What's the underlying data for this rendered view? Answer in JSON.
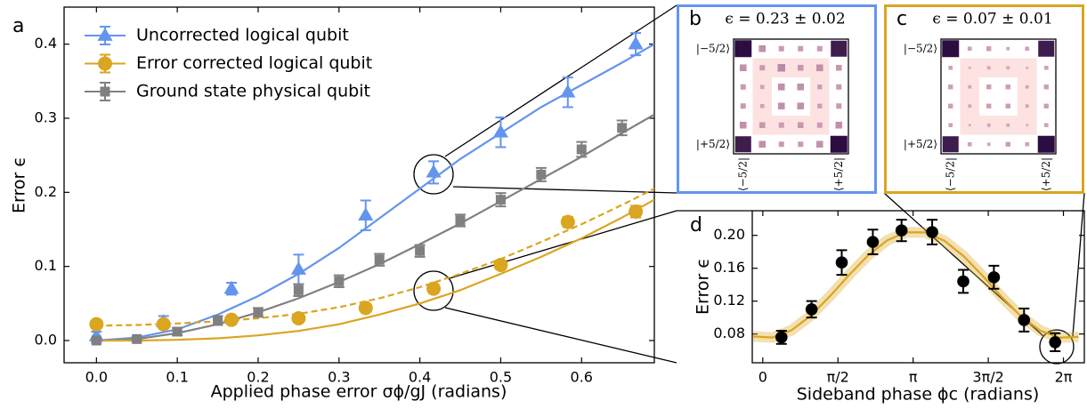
{
  "chart_data": [
    {
      "type": "errorbar",
      "panel": "a",
      "xlabel": "Applied phase error σϕ/gJ (radians)",
      "ylabel": "Error ϵ",
      "xlim": [
        -0.04,
        0.69
      ],
      "ylim": [
        -0.03,
        0.45
      ],
      "xticks": [
        {
          "value": 0,
          "label": "0.0"
        },
        0.1,
        0.2,
        0.3,
        0.4,
        0.5,
        0.6
      ],
      "yticks": [
        {
          "value": 0,
          "label": "0.0"
        },
        0.1,
        0.2,
        0.3,
        0.4
      ],
      "legend": "upper left",
      "series": [
        {
          "name": "Uncorrected logical qubit",
          "color": "#6495ed",
          "marker": "triangle",
          "x": [
            0,
            0.083,
            0.167,
            0.25,
            0.333,
            0.417,
            0.5,
            0.583,
            0.667
          ],
          "values": [
            0.006,
            0.025,
            0.07,
            0.096,
            0.169,
            0.227,
            0.281,
            0.335,
            0.4
          ],
          "errors": [
            0.006,
            0.008,
            0.008,
            0.02,
            0.02,
            0.015,
            0.02,
            0.02,
            0.015
          ]
        },
        {
          "name": "Error corrected logical qubit",
          "color": "#daa520",
          "marker": "circle",
          "x": [
            0,
            0.083,
            0.167,
            0.25,
            0.333,
            0.417,
            0.5,
            0.583,
            0.667
          ],
          "values": [
            0.022,
            0.022,
            0.028,
            0.03,
            0.044,
            0.07,
            0.102,
            0.16,
            0.174
          ],
          "errors": [
            0.004,
            0.004,
            0.004,
            0.004,
            0.005,
            0.006,
            0.006,
            0.007,
            0.008
          ]
        },
        {
          "name": "Ground state physical qubit",
          "color": "#808080",
          "marker": "square",
          "x": [
            0,
            0.05,
            0.1,
            0.15,
            0.2,
            0.25,
            0.3,
            0.35,
            0.4,
            0.45,
            0.5,
            0.55,
            0.6,
            0.65
          ],
          "values": [
            0,
            0.002,
            0.012,
            0.027,
            0.038,
            0.068,
            0.08,
            0.109,
            0.121,
            0.162,
            0.19,
            0.224,
            0.258,
            0.287
          ],
          "errors": [
            0.003,
            0.003,
            0.005,
            0.006,
            0.006,
            0.008,
            0.008,
            0.008,
            0.008,
            0.008,
            0.009,
            0.009,
            0.01,
            0.01
          ]
        }
      ],
      "fits": [
        {
          "color": "#6495ed",
          "dashed": false,
          "x": [
            0,
            0.05,
            0.1,
            0.15,
            0.2,
            0.25,
            0.3,
            0.35,
            0.4,
            0.45,
            0.5,
            0.55,
            0.6,
            0.65,
            0.69
          ],
          "values": [
            0,
            0.004,
            0.015,
            0.035,
            0.06,
            0.09,
            0.125,
            0.165,
            0.205,
            0.245,
            0.28,
            0.315,
            0.345,
            0.375,
            0.4
          ]
        },
        {
          "color": "#808080",
          "dashed": false,
          "x": [
            0,
            0.05,
            0.1,
            0.15,
            0.2,
            0.25,
            0.3,
            0.35,
            0.4,
            0.45,
            0.5,
            0.55,
            0.6,
            0.65,
            0.69
          ],
          "values": [
            0,
            0.002,
            0.01,
            0.022,
            0.038,
            0.057,
            0.079,
            0.103,
            0.13,
            0.158,
            0.188,
            0.218,
            0.248,
            0.28,
            0.305
          ]
        },
        {
          "color": "#daa520",
          "dashed": true,
          "x": [
            0,
            0.05,
            0.1,
            0.15,
            0.2,
            0.25,
            0.3,
            0.35,
            0.4,
            0.45,
            0.5,
            0.55,
            0.6,
            0.65,
            0.69
          ],
          "values": [
            0.02,
            0.021,
            0.023,
            0.026,
            0.03,
            0.036,
            0.045,
            0.057,
            0.072,
            0.09,
            0.11,
            0.133,
            0.157,
            0.183,
            0.205
          ]
        },
        {
          "color": "#daa520",
          "dashed": false,
          "x": [
            0,
            0.05,
            0.1,
            0.15,
            0.2,
            0.25,
            0.3,
            0.35,
            0.4,
            0.45,
            0.5,
            0.55,
            0.6,
            0.65,
            0.69
          ],
          "values": [
            0,
            0,
            0.001,
            0.003,
            0.007,
            0.013,
            0.022,
            0.035,
            0.05,
            0.068,
            0.09,
            0.113,
            0.138,
            0.166,
            0.19
          ]
        }
      ]
    },
    {
      "type": "errorbar",
      "panel": "d",
      "xlabel": "Sideband phase ϕc (radians)",
      "ylabel": "Error ϵ",
      "xlim": [
        -0.22,
        6.72
      ],
      "ylim": [
        0.045,
        0.23
      ],
      "xticks": [
        0,
        {
          "value": 1.5708,
          "label": "π/2"
        },
        {
          "value": 3.1416,
          "label": "π"
        },
        {
          "value": 4.7124,
          "label": "3π/2"
        },
        {
          "value": 6.2832,
          "label": "2π"
        }
      ],
      "yticks": [
        0.08,
        0.12,
        0.16,
        {
          "value": 0.2,
          "label": "0.20"
        }
      ],
      "series": [
        {
          "color": "#000000",
          "marker": "circle",
          "x": [
            0.39,
            1.02,
            1.65,
            2.3,
            2.9,
            3.54,
            4.19,
            4.83,
            5.46,
            6.11
          ],
          "values": [
            0.076,
            0.11,
            0.167,
            0.192,
            0.206,
            0.204,
            0.144,
            0.149,
            0.097,
            0.07
          ],
          "errors": [
            0.008,
            0.01,
            0.015,
            0.015,
            0.013,
            0.015,
            0.014,
            0.014,
            0.014,
            0.011
          ]
        }
      ],
      "fits": [
        {
          "color": "#daa520",
          "dashed": false,
          "band": true,
          "x": [
            -0.2,
            0.2,
            0.6,
            1.0,
            1.4,
            1.8,
            2.2,
            2.6,
            3.0,
            3.4,
            3.8,
            4.2,
            4.6,
            5.0,
            5.4,
            5.8,
            6.2,
            6.6
          ],
          "values": [
            0.077,
            0.0757,
            0.0846,
            0.1022,
            0.1258,
            0.1516,
            0.1756,
            0.194,
            0.2038,
            0.2036,
            0.1933,
            0.1746,
            0.1505,
            0.1247,
            0.1013,
            0.0841,
            0.0756,
            0.0765
          ]
        }
      ]
    }
  ],
  "insets": [
    {
      "panel": "b",
      "title": "ϵ = 0.23 ± 0.02",
      "border_color": "#6495ed",
      "row_labels": [
        "|−5/2⟩",
        "|+5/2⟩"
      ],
      "col_labels": [
        "⟨−5/2|",
        "⟨+5/2|"
      ],
      "matrix": [
        [
          0.5,
          0.08,
          0.05,
          0.05,
          0.05,
          0.45
        ],
        [
          0.08,
          0.05,
          0.1,
          0.06,
          0.08,
          0.06
        ],
        [
          0.05,
          0.03,
          0.08,
          0.08,
          0.04,
          0.05
        ],
        [
          0.05,
          0.03,
          0.08,
          0.08,
          0.04,
          0.05
        ],
        [
          0.08,
          0.06,
          0.05,
          0.06,
          0.05,
          0.08
        ],
        [
          0.45,
          0.08,
          0.05,
          0.05,
          0.08,
          0.5
        ]
      ]
    },
    {
      "panel": "c",
      "title": "ϵ = 0.07 ± 0.01",
      "border_color": "#daa520",
      "row_labels": [
        "|−5/2⟩",
        "|+5/2⟩"
      ],
      "col_labels": [
        "⟨−5/2|",
        "⟨+5/2|"
      ],
      "matrix": [
        [
          0.5,
          0.03,
          0.04,
          0.02,
          0.03,
          0.45
        ],
        [
          0.03,
          0.01,
          0.02,
          0.02,
          0.01,
          0.03
        ],
        [
          0.04,
          0.02,
          0.04,
          0.04,
          0.02,
          0.04
        ],
        [
          0.04,
          0.02,
          0.04,
          0.04,
          0.02,
          0.04
        ],
        [
          0.03,
          0.01,
          0.02,
          0.02,
          0.01,
          0.03
        ],
        [
          0.45,
          0.03,
          0.02,
          0.04,
          0.03,
          0.5
        ]
      ]
    }
  ]
}
